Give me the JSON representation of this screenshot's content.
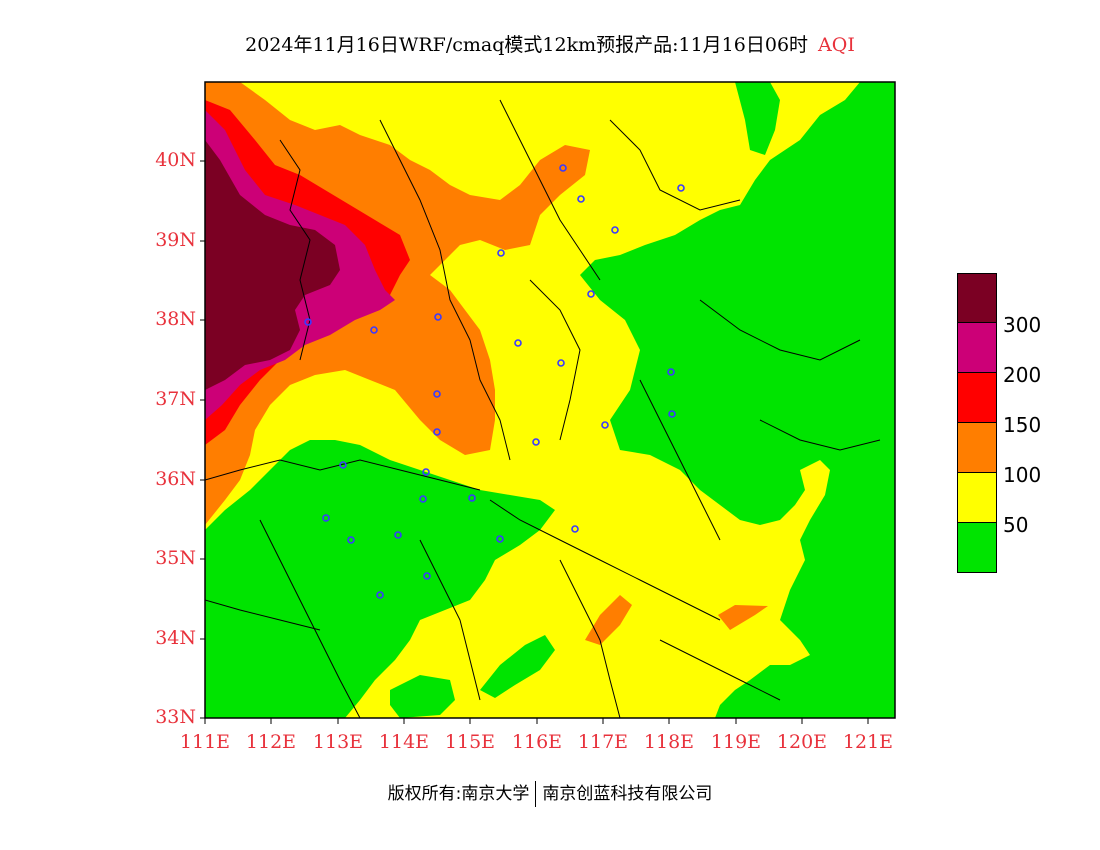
{
  "title": {
    "main": "2024年11月16日WRF/cmaq模式12km预报产品:11月16日06时",
    "aqi": "AQI"
  },
  "axes": {
    "lat_labels": [
      "40N",
      "39N",
      "38N",
      "37N",
      "36N",
      "35N",
      "34N",
      "33N"
    ],
    "lon_labels": [
      "111E",
      "112E",
      "113E",
      "114E",
      "115E",
      "116E",
      "117E",
      "118E",
      "119E",
      "120E",
      "121E"
    ]
  },
  "legend": {
    "colors": [
      "#7b0023",
      "#cc0077",
      "#ff0000",
      "#ff7e00",
      "#ffff00",
      "#00e400"
    ],
    "labels": [
      "300",
      "200",
      "150",
      "100",
      "50"
    ]
  },
  "footer": {
    "left": "版权所有:南京大学",
    "right": "南京创蓝科技有限公司"
  },
  "map": {
    "extent": {
      "lon_min": 111,
      "lon_max": 121.4,
      "lat_min": 33,
      "lat_max": 41
    },
    "aqi_colors": {
      "good": "#00e400",
      "moderate": "#ffff00",
      "usg": "#ff7e00",
      "unhealthy": "#ff0000",
      "very_unhealthy": "#cc0077",
      "hazardous": "#7b0023"
    },
    "station_marker_color": "#3a3aff"
  }
}
